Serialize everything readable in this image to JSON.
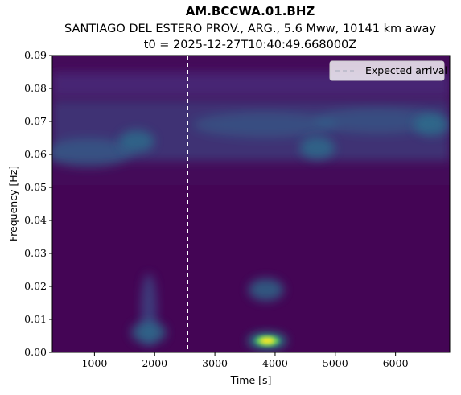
{
  "chart_data": {
    "type": "heatmap",
    "title": "AM.BCCWA.01.BHZ",
    "subtitle": "SANTIAGO DEL ESTERO PROV., ARG., 5.6 Mww, 10141 km away",
    "subtitle2": "t0 = 2025-12-27T10:40:49.668000Z",
    "xlabel": "Time [s]",
    "ylabel": "Frequency [Hz]",
    "xlim": [
      300,
      6900
    ],
    "ylim": [
      0.0,
      0.09
    ],
    "xticks": [
      1000,
      2000,
      3000,
      4000,
      5000,
      6000
    ],
    "xtick_labels": [
      "1000",
      "2000",
      "3000",
      "4000",
      "5000",
      "6000"
    ],
    "yticks": [
      0.0,
      0.01,
      0.02,
      0.03,
      0.04,
      0.05,
      0.06,
      0.07,
      0.08,
      0.09
    ],
    "ytick_labels": [
      "0.00",
      "0.01",
      "0.02",
      "0.03",
      "0.04",
      "0.05",
      "0.06",
      "0.07",
      "0.08",
      "0.09"
    ],
    "colormap": "viridis",
    "expected_arrival": {
      "time": 2550,
      "label": "Expected arrival",
      "color": "#ffffff"
    },
    "legend_position": "upper-right",
    "features": [
      {
        "time": 3870,
        "freq": 0.0035,
        "intensity": 1.0
      },
      {
        "time": 3850,
        "freq": 0.019,
        "intensity": 0.35
      },
      {
        "time": 1900,
        "freq": 0.006,
        "intensity": 0.3
      },
      {
        "time": 1700,
        "freq": 0.064,
        "intensity": 0.45
      },
      {
        "time": 4700,
        "freq": 0.062,
        "intensity": 0.35
      },
      {
        "time": 6600,
        "freq": 0.069,
        "intensity": 0.4
      }
    ],
    "grid": false
  }
}
